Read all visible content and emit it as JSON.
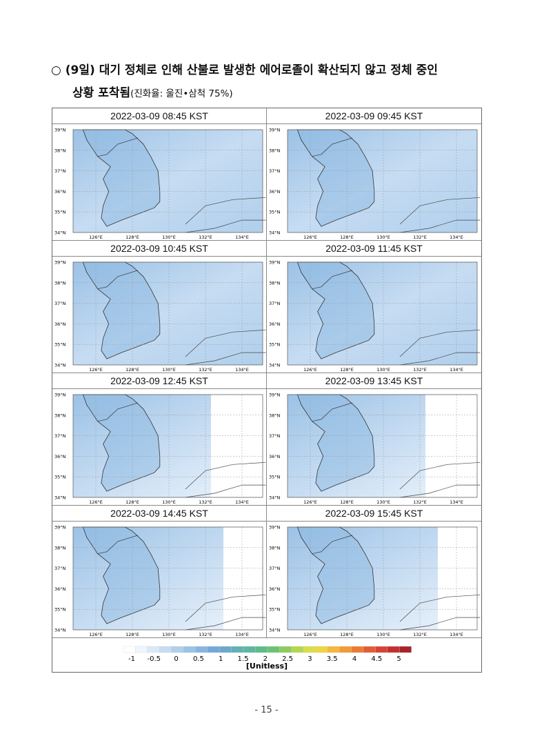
{
  "heading": {
    "bullet": "○",
    "line1": "(9일) 대기 정체로 인해 산불로 발생한 에어로졸이 확산되지 않고 정체 중인",
    "line2_bold": "상황 포착됨",
    "line2_note": "(진화율: 울진•삼척 75%)"
  },
  "figure": {
    "panels": [
      "2022-03-09 08:45 KST",
      "2022-03-09 09:45 KST",
      "2022-03-09 10:45 KST",
      "2022-03-09 11:45 KST",
      "2022-03-09 12:45 KST",
      "2022-03-09 13:45 KST",
      "2022-03-09 14:45 KST",
      "2022-03-09 15:45 KST"
    ],
    "lat_labels": [
      "39°N",
      "38°N",
      "37°N",
      "36°N",
      "35°N",
      "34°N"
    ],
    "lon_labels": [
      "126°E",
      "128°E",
      "130°E",
      "132°E",
      "134°E"
    ],
    "colorbar": {
      "colors": [
        "#ffffff",
        "#eef5fc",
        "#dbe9f7",
        "#c6dcf2",
        "#b0cfec",
        "#9cc2e6",
        "#88b5e0",
        "#74a8da",
        "#6aa9c9",
        "#62b0b5",
        "#5db7a0",
        "#5cbc8a",
        "#6cc274",
        "#8ccc5e",
        "#b4d74e",
        "#d8de48",
        "#f0d540",
        "#f5b83a",
        "#f29a36",
        "#ec7b33",
        "#e35d32",
        "#d64432",
        "#c4302f",
        "#a6232a"
      ],
      "labels": [
        "-1",
        "-0.5",
        "0",
        "0.5",
        "1",
        "1.5",
        "2",
        "2.5",
        "3",
        "3.5",
        "4",
        "4.5",
        "5"
      ],
      "unit": "[Unitless]"
    }
  },
  "footer": {
    "page_number": "- 15 -"
  }
}
